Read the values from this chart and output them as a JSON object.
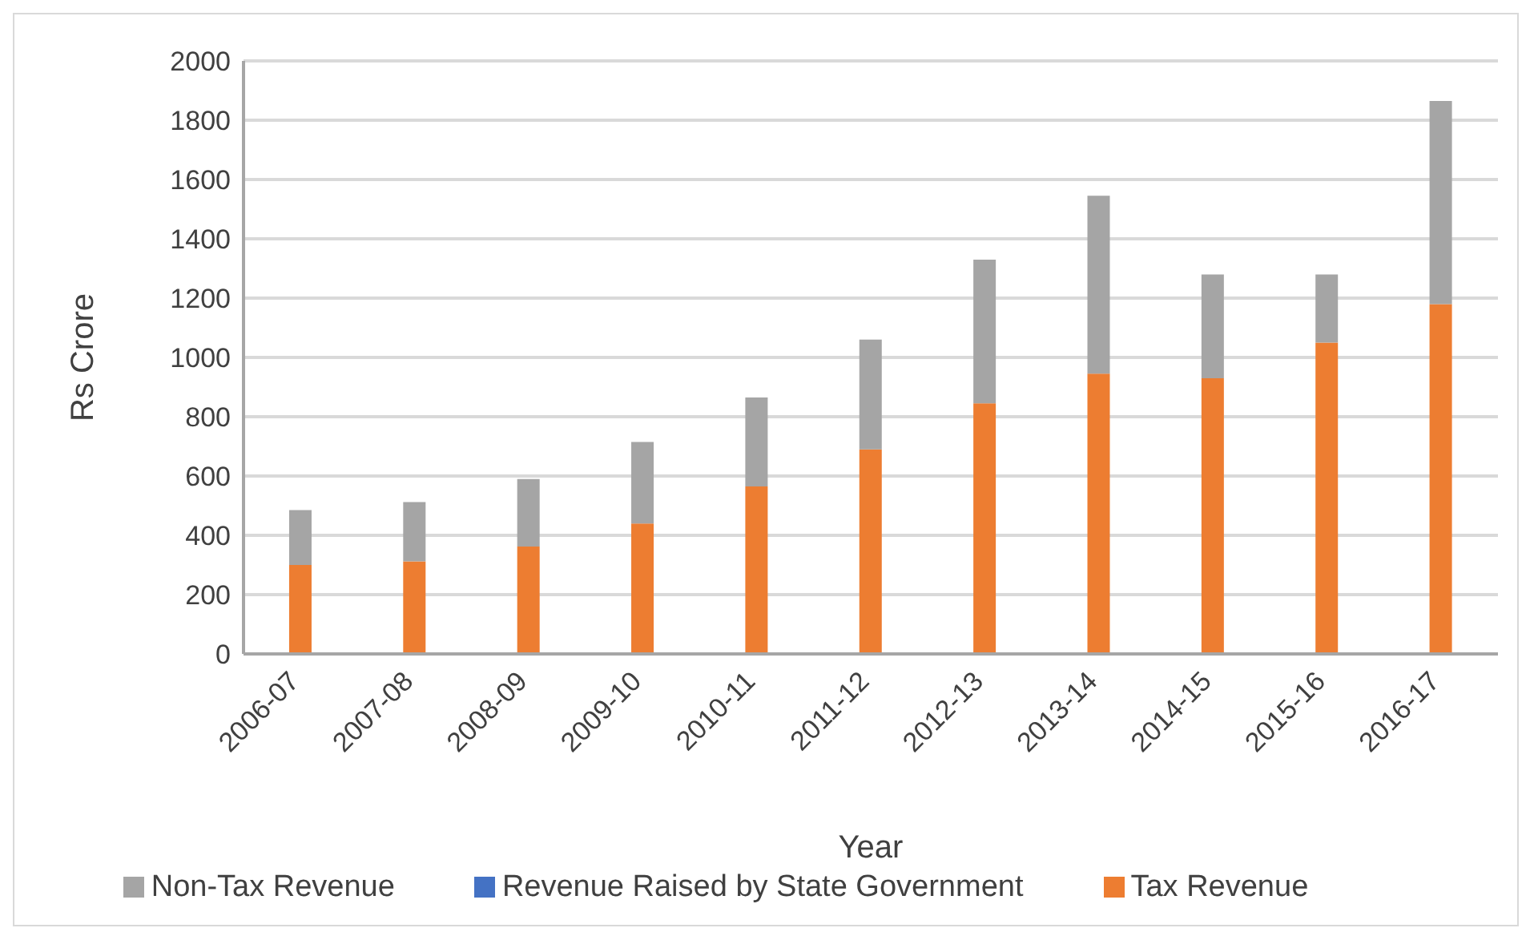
{
  "chart_data": {
    "type": "bar",
    "stacked": true,
    "xlabel": "Year",
    "ylabel": "Rs Crore",
    "categories": [
      "2006-07",
      "2007-08",
      "2008-09",
      "2009-10",
      "2010-11",
      "2011-12",
      "2012-13",
      "2013-14",
      "2014-15",
      "2015-16",
      "2016-17"
    ],
    "series": [
      {
        "name": "Revenue Raised by State Government",
        "color": "#4472c4",
        "values": [
          null,
          null,
          null,
          null,
          null,
          null,
          null,
          null,
          null,
          null,
          null
        ]
      },
      {
        "name": "Tax Revenue",
        "color": "#ed7d31",
        "values": [
          300,
          312,
          362,
          440,
          565,
          690,
          845,
          945,
          930,
          1050,
          1180
        ]
      },
      {
        "name": "Non-Tax Revenue",
        "color": "#a5a5a5",
        "values": [
          185,
          200,
          228,
          275,
          300,
          370,
          485,
          600,
          350,
          230,
          685
        ]
      }
    ],
    "ylim": [
      0,
      2000
    ],
    "yticks": [
      0,
      200,
      400,
      600,
      800,
      1000,
      1200,
      1400,
      1600,
      1800,
      2000
    ],
    "grid": "y",
    "legend": "bottom"
  }
}
